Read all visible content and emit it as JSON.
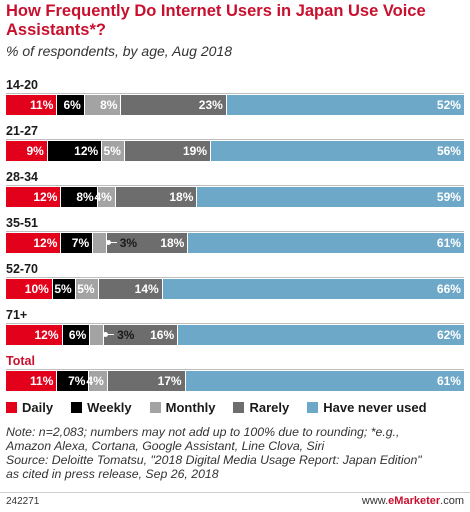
{
  "title": "How Frequently Do Internet Users in Japan Use Voice Assistants*?",
  "subtitle": "% of respondents, by age, Aug 2018",
  "chart_data": {
    "type": "bar",
    "stacked": true,
    "orientation": "horizontal",
    "categories": [
      "14-20",
      "21-27",
      "28-34",
      "35-51",
      "52-70",
      "71+",
      "Total"
    ],
    "series": [
      {
        "name": "Daily",
        "color": "#e2001a",
        "values": [
          11,
          9,
          12,
          12,
          10,
          12,
          11
        ]
      },
      {
        "name": "Weekly",
        "color": "#000000",
        "values": [
          6,
          12,
          8,
          7,
          5,
          6,
          7
        ]
      },
      {
        "name": "Monthly",
        "color": "#a3a3a3",
        "values": [
          8,
          5,
          4,
          3,
          5,
          3,
          4
        ]
      },
      {
        "name": "Rarely",
        "color": "#6d6d6d",
        "values": [
          23,
          19,
          18,
          18,
          14,
          16,
          17
        ]
      },
      {
        "name": "Have never used",
        "color": "#6ea8c8",
        "values": [
          52,
          56,
          59,
          61,
          66,
          62,
          61
        ]
      }
    ],
    "xlim": [
      0,
      100
    ],
    "legend": "bottom"
  },
  "legend_items": [
    "Daily",
    "Weekly",
    "Monthly",
    "Rarely",
    "Have never used"
  ],
  "note_lines": [
    "Note: n=2,083; numbers may not add up to 100% due to rounding; *e.g.,",
    "Amazon Alexa, Cortana, Google Assistant, Line Clova, Siri",
    "Source: Deloitte Tomatsu, \"2018 Digital Media Usage Report: Japan Edition\"",
    "as cited in press release, Sep 26, 2018"
  ],
  "footer": {
    "id": "242271",
    "brand_prefix": "www.",
    "brand_name": "eMarketer",
    "brand_suffix": ".com"
  }
}
